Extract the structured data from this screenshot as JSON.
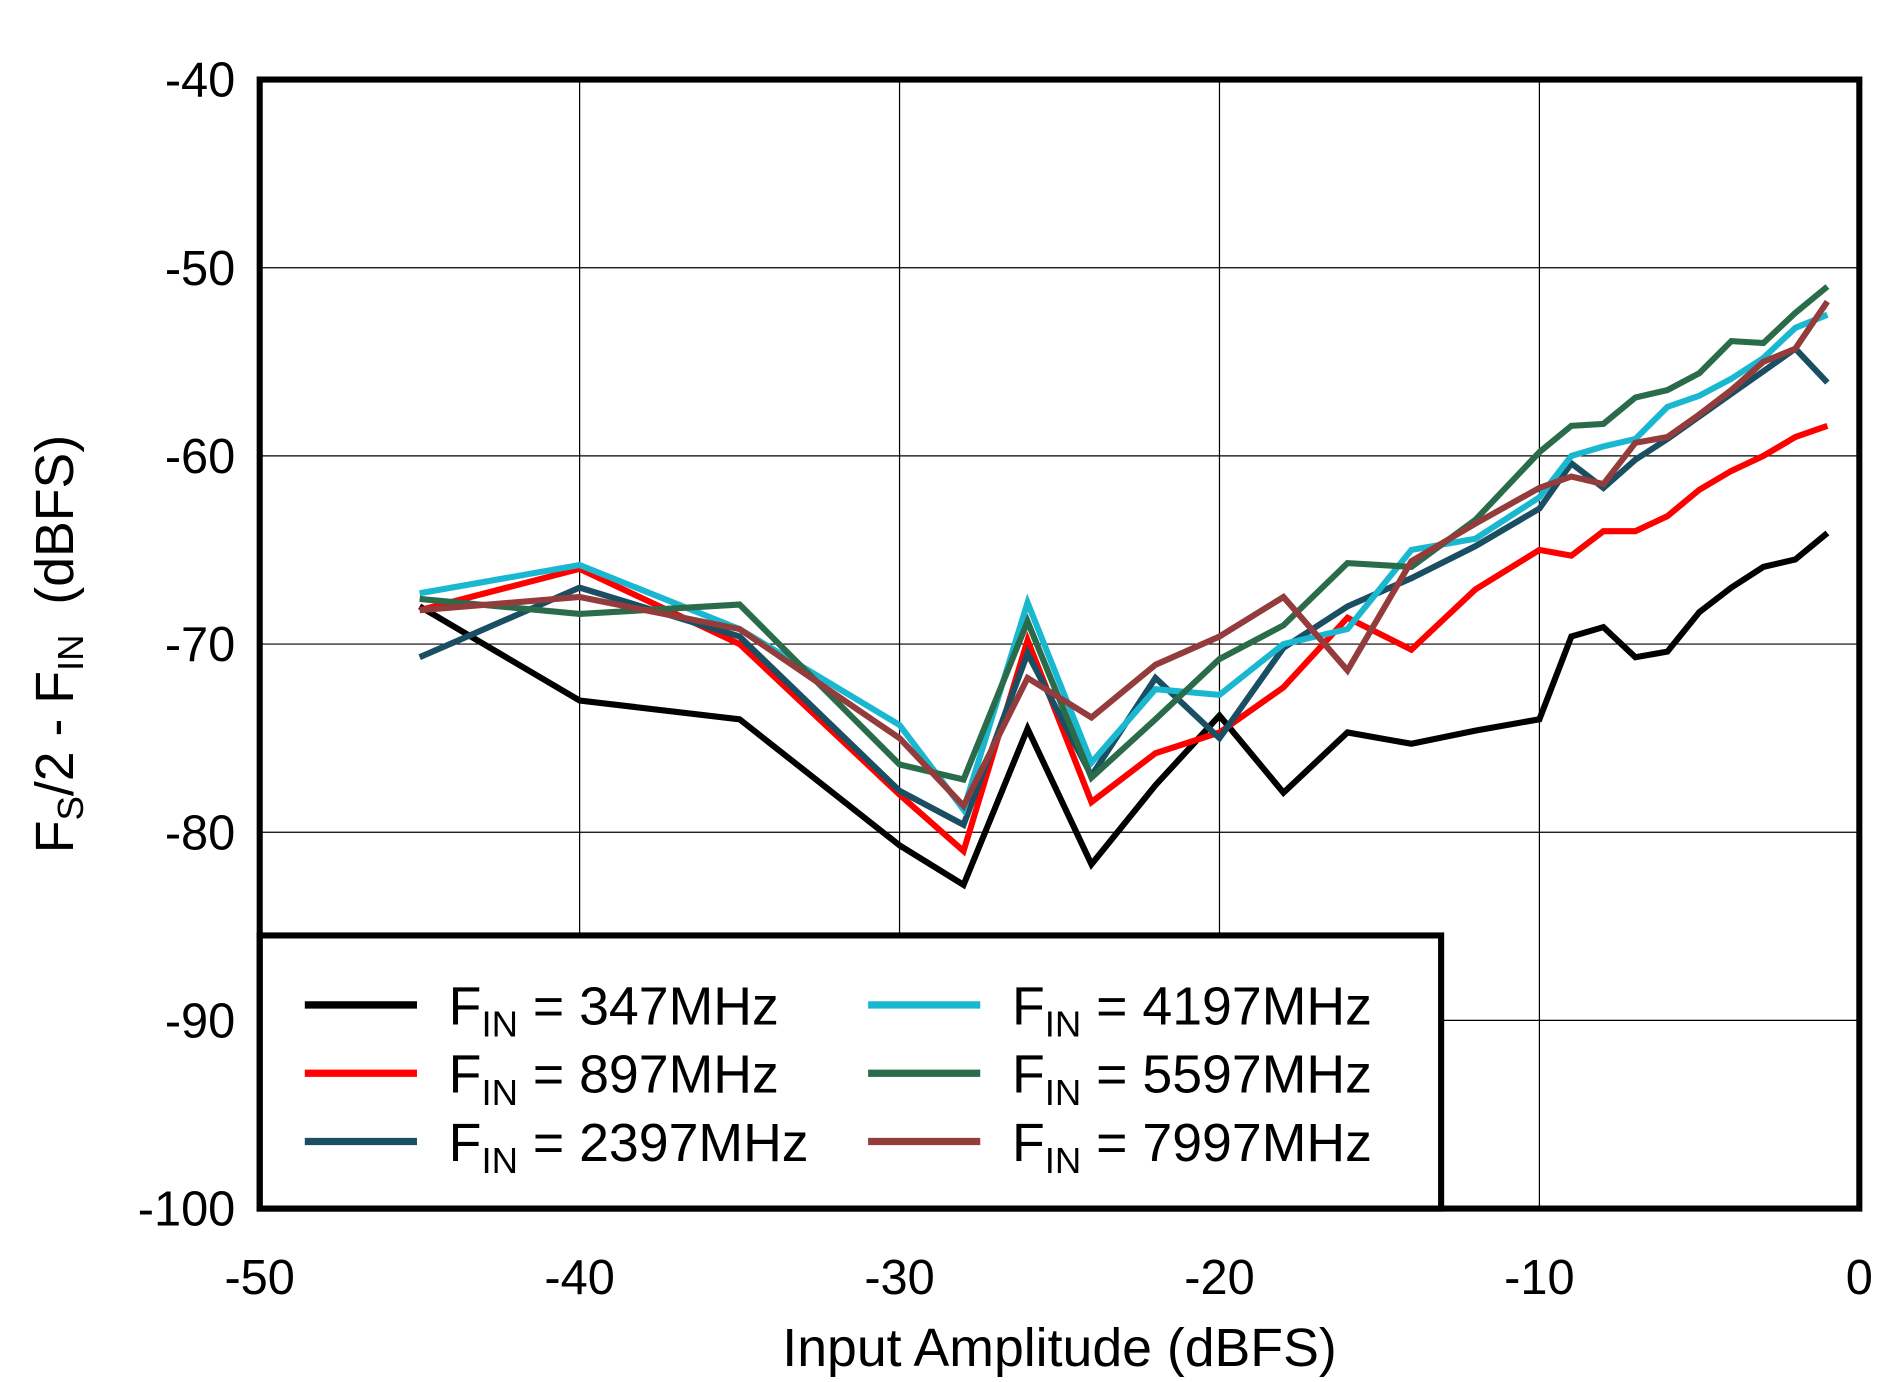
{
  "chart_data": {
    "type": "line",
    "title": "",
    "xlabel": "Input Amplitude  (dBFS)",
    "ylabel_parts": {
      "main": "F",
      "sub1": "S",
      "mid": "/2 - F",
      "sub2": "IN",
      "tail": "  (dBFS)"
    },
    "xlim": [
      -50,
      0
    ],
    "ylim": [
      -100,
      -40
    ],
    "xticks": [
      -50,
      -40,
      -30,
      -20,
      -10,
      0
    ],
    "yticks": [
      -40,
      -50,
      -60,
      -70,
      -80,
      -90,
      -100
    ],
    "xtick_labels": [
      "-50",
      "-40",
      "-30",
      "-20",
      "-10",
      "0"
    ],
    "ytick_labels": [
      "-40",
      "-50",
      "-60",
      "-70",
      "-80",
      "-90",
      "-100"
    ],
    "grid": true,
    "legend_placement": "bottom-left",
    "x": [
      -45,
      -40,
      -35,
      -30,
      -28,
      -26,
      -24,
      -22,
      -20,
      -18,
      -16,
      -14,
      -12,
      -10,
      -9,
      -8,
      -7,
      -6,
      -5,
      -4,
      -3,
      -2,
      -1
    ],
    "series": [
      {
        "name": "FIN = 347MHz",
        "label_main": "F",
        "label_sub": "IN",
        "label_rest": " = 347MHz",
        "color": "#000000",
        "values": [
          -68,
          -73,
          -74,
          -80.7,
          -82.8,
          -74.5,
          -81.7,
          -77.5,
          -73.8,
          -77.9,
          -74.7,
          -75.3,
          -74.6,
          -74,
          -69.6,
          -69.1,
          -70.7,
          -70.4,
          -68.3,
          -67,
          -65.9,
          -65.5,
          -64.1
        ]
      },
      {
        "name": "FIN = 897MHz",
        "label_main": "F",
        "label_sub": "IN",
        "label_rest": " = 897MHz",
        "color": "#ff0000",
        "values": [
          -68.2,
          -66,
          -70,
          -78,
          -81,
          -69.8,
          -78.4,
          -75.8,
          -74.7,
          -72.3,
          -68.6,
          -70.3,
          -67.1,
          -65,
          -65.3,
          -64,
          -64,
          -63.2,
          -61.8,
          -60.8,
          -60,
          -59,
          -58.4
        ]
      },
      {
        "name": "FIN = 2397MHz",
        "label_main": "F",
        "label_sub": "IN",
        "label_rest": " = 2397MHz",
        "color": "#1a4f63",
        "values": [
          -70.7,
          -67,
          -69.6,
          -77.8,
          -79.6,
          -70.5,
          -77,
          -71.8,
          -75,
          -70.2,
          -68,
          -66.5,
          -64.8,
          -62.8,
          -60.4,
          -61.7,
          -60.2,
          -59.1,
          -57.9,
          -56.7,
          -55.5,
          -54.3,
          -56.1
        ]
      },
      {
        "name": "FIN = 4197MHz",
        "label_main": "F",
        "label_sub": "IN",
        "label_rest": " = 4197MHz",
        "color": "#1ab8d0",
        "values": [
          -67.3,
          -65.8,
          -69.2,
          -74.3,
          -78.8,
          -67.8,
          -76.3,
          -72.4,
          -72.7,
          -70,
          -69.2,
          -65,
          -64.4,
          -62.2,
          -60,
          -59.5,
          -59.1,
          -57.4,
          -56.8,
          -55.9,
          -54.8,
          -53.2,
          -52.5
        ]
      },
      {
        "name": "FIN = 5597MHz",
        "label_main": "F",
        "label_sub": "IN",
        "label_rest": " = 5597MHz",
        "color": "#2a6b4a",
        "values": [
          -67.6,
          -68.4,
          -67.9,
          -76.4,
          -77.2,
          -68.8,
          -77.1,
          -74,
          -70.8,
          -69,
          -65.7,
          -65.9,
          -63.4,
          -59.8,
          -58.4,
          -58.3,
          -56.9,
          -56.5,
          -55.6,
          -53.9,
          -54,
          -52.4,
          -51
        ]
      },
      {
        "name": "FIN = 7997MHz",
        "label_main": "F",
        "label_sub": "IN",
        "label_rest": " = 7997MHz",
        "color": "#943c3c",
        "values": [
          -68.2,
          -67.5,
          -69.2,
          -75,
          -78.6,
          -71.8,
          -73.9,
          -71.1,
          -69.6,
          -67.5,
          -71.4,
          -65.6,
          -63.6,
          -61.7,
          -61.1,
          -61.5,
          -59.3,
          -59,
          -57.8,
          -56.5,
          -55,
          -54.3,
          -51.8
        ]
      }
    ]
  }
}
